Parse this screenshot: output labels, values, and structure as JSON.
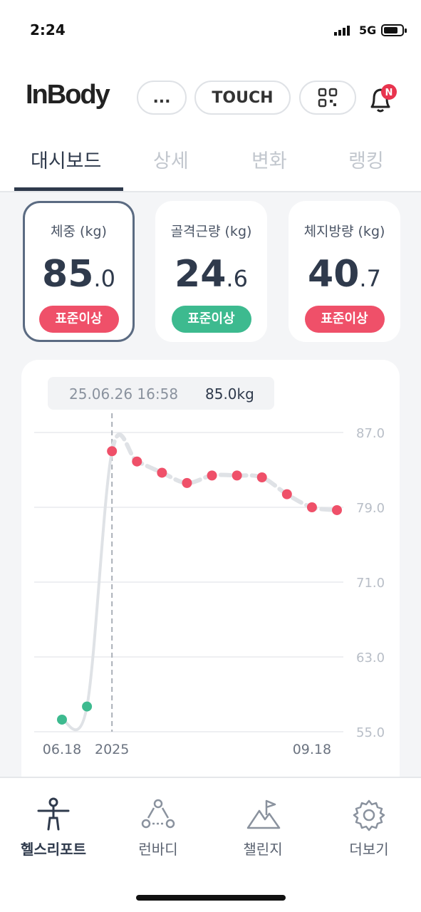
{
  "status_bar": {
    "time": "2:24",
    "network": "5G"
  },
  "header": {
    "logo": "InBody",
    "more_button": "...",
    "touch_button": "TOUCH"
  },
  "tabs": [
    "대시보드",
    "상세",
    "변화",
    "랭킹"
  ],
  "cards": [
    {
      "title": "체중 (kg)",
      "value": "85",
      "decimal": ".0",
      "status": "표준이상",
      "status_color": "#ef5069"
    },
    {
      "title": "골격근량 (kg)",
      "value": "24",
      "decimal": ".6",
      "status": "표준이상",
      "status_color": "#3dba8f"
    },
    {
      "title": "체지방량 (kg)",
      "value": "40",
      "decimal": ".7",
      "status": "표준이상",
      "status_color": "#ef5069"
    }
  ],
  "chart_data": {
    "type": "line",
    "tooltip": {
      "date": "25.06.26 16:58",
      "value": "85.0kg"
    },
    "categories": [
      "06.18",
      null,
      "2025",
      null,
      null,
      null,
      null,
      null,
      null,
      null,
      "09.18",
      null
    ],
    "series": [
      {
        "color": "#ef5069",
        "line_color": "#dfe2e6",
        "point_colors": [
          "#3dba8f",
          "#3dba8f",
          "#ef5069",
          "#ef5069",
          "#ef5069",
          "#ef5069",
          "#ef5069",
          "#ef5069",
          "#ef5069",
          "#ef5069",
          "#ef5069",
          "#ef5069"
        ],
        "values": [
          56.3,
          57.7,
          85.0,
          83.9,
          82.7,
          81.6,
          82.4,
          82.4,
          82.2,
          80.4,
          79.0,
          78.7
        ]
      }
    ],
    "selected_index": 2,
    "ylim": [
      55,
      87
    ],
    "yticks": [
      {
        "value": 55,
        "label": "55.0"
      },
      {
        "value": 63,
        "label": "63.0"
      },
      {
        "value": 71,
        "label": "71.0"
      },
      {
        "value": 79,
        "label": "79.0"
      },
      {
        "value": 87,
        "label": "87.0"
      }
    ],
    "grid": true
  },
  "nav": [
    "헬스리포트",
    "런바디",
    "챌린지",
    "더보기"
  ]
}
